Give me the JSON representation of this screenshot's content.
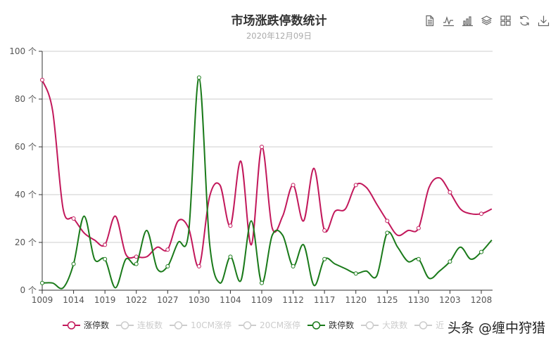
{
  "header": {
    "title": "市场涨跌停数统计",
    "subtitle": "2020年12月09日"
  },
  "toolbox": [
    {
      "name": "data-view-icon",
      "label": "数据视图"
    },
    {
      "name": "line-chart-icon",
      "label": "切换为折线图"
    },
    {
      "name": "bar-chart-icon",
      "label": "切换为柱状图"
    },
    {
      "name": "stack-icon",
      "label": "切换为堆叠"
    },
    {
      "name": "tiled-icon",
      "label": "切换为平铺"
    },
    {
      "name": "restore-icon",
      "label": "还原"
    },
    {
      "name": "download-icon",
      "label": "保存为图片"
    }
  ],
  "legend": [
    {
      "label": "涨停数",
      "active": true,
      "color": "#c2185b"
    },
    {
      "label": "连板数",
      "active": false,
      "color": "#cccccc"
    },
    {
      "label": "10CM涨停",
      "active": false,
      "color": "#cccccc"
    },
    {
      "label": "20CM涨停",
      "active": false,
      "color": "#cccccc"
    },
    {
      "label": "跌停数",
      "active": true,
      "color": "#1a7a1a"
    },
    {
      "label": "大跌数",
      "active": false,
      "color": "#cccccc"
    },
    {
      "label": "近",
      "active": false,
      "color": "#cccccc"
    }
  ],
  "watermark": "头条 @缠中狩猎",
  "chart_data": {
    "type": "line",
    "title": "市场涨跌停数统计",
    "subtitle": "2020年12月09日",
    "xlabel": "",
    "ylabel": "",
    "y_unit": "个",
    "ylim": [
      0,
      100
    ],
    "yticks": [
      0,
      20,
      40,
      60,
      80,
      100
    ],
    "grid": true,
    "legend_position": "bottom",
    "x_tick_labels": [
      "1009",
      "1014",
      "1019",
      "1022",
      "1027",
      "1030",
      "1104",
      "1109",
      "1112",
      "1117",
      "1120",
      "1125",
      "1130",
      "1203",
      "1208"
    ],
    "x": [
      "1009",
      "1012",
      "1013",
      "1014",
      "1015",
      "1016",
      "1019",
      "1020",
      "1021",
      "1022",
      "1023",
      "1026",
      "1027",
      "1028",
      "1029",
      "1030",
      "1102",
      "1103",
      "1104",
      "1105",
      "1106",
      "1109",
      "1110",
      "1111",
      "1112",
      "1113",
      "1116",
      "1117",
      "1118",
      "1119",
      "1120",
      "1123",
      "1124",
      "1125",
      "1126",
      "1127",
      "1130",
      "1201",
      "1202",
      "1203",
      "1204",
      "1207",
      "1208",
      "1209"
    ],
    "series": [
      {
        "name": "涨停数",
        "color": "#c2185b",
        "visible": true,
        "values": [
          88,
          75,
          34,
          30,
          24,
          21,
          19,
          31,
          15,
          14,
          14,
          18,
          17,
          29,
          26,
          10,
          39,
          44,
          27,
          54,
          19,
          60,
          26,
          31,
          44,
          29,
          51,
          25,
          33,
          34,
          44,
          43,
          36,
          29,
          23,
          25,
          26,
          43,
          47,
          41,
          34,
          32,
          32,
          34
        ]
      },
      {
        "name": "连板数",
        "visible": false,
        "values": []
      },
      {
        "name": "10CM涨停",
        "visible": false,
        "values": []
      },
      {
        "name": "20CM涨停",
        "visible": false,
        "values": []
      },
      {
        "name": "跌停数",
        "color": "#1a7a1a",
        "visible": true,
        "values": [
          3,
          3,
          1,
          11,
          31,
          13,
          13,
          1,
          13,
          11,
          25,
          9,
          10,
          20,
          24,
          89,
          20,
          3,
          14,
          4,
          29,
          3,
          23,
          23,
          10,
          19,
          2,
          13,
          11,
          9,
          7,
          8,
          6,
          24,
          18,
          12,
          13,
          5,
          8,
          12,
          18,
          13,
          16,
          21
        ]
      },
      {
        "name": "大跌数",
        "visible": false,
        "values": []
      },
      {
        "name": "近",
        "visible": false,
        "values": []
      }
    ]
  }
}
